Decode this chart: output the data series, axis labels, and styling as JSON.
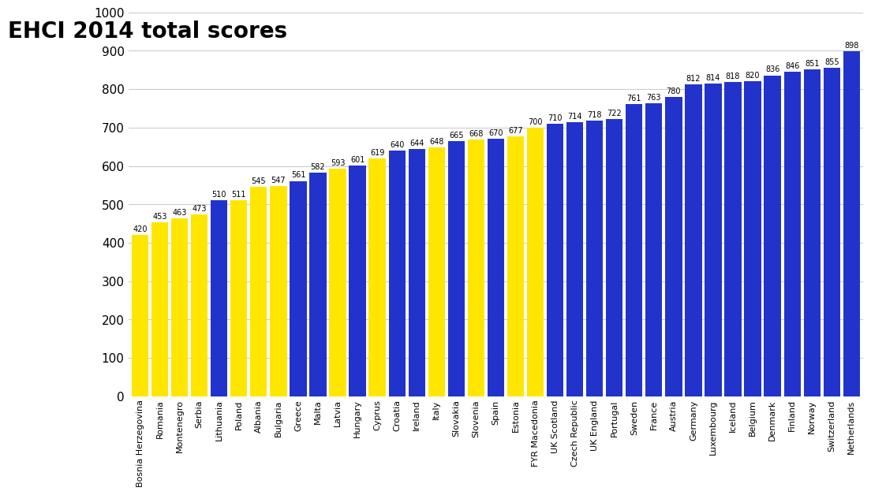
{
  "title": "EHCI 2014 total scores",
  "categories": [
    "Bosnia Herzegovina",
    "Romania",
    "Montenegro",
    "Serbia",
    "Lithuania",
    "Poland",
    "Albania",
    "Bulgaria",
    "Greece",
    "Malta",
    "Latvia",
    "Hungary",
    "Cyprus",
    "Croatia",
    "Ireland",
    "Italy",
    "Slovakia",
    "Slovenia",
    "Spain",
    "Estonia",
    "FYR Macedonia",
    "UK Scotland",
    "Czech Republic",
    "UK England",
    "Portugal",
    "Sweden",
    "France",
    "Austria",
    "Germany",
    "Luxembourg",
    "Iceland",
    "Belgium",
    "Denmark",
    "Finland",
    "Norway",
    "Switzerland",
    "Netherlands"
  ],
  "values": [
    420,
    453,
    463,
    473,
    510,
    511,
    545,
    547,
    561,
    582,
    593,
    601,
    619,
    640,
    644,
    648,
    665,
    668,
    670,
    677,
    700,
    710,
    714,
    718,
    722,
    761,
    763,
    780,
    812,
    814,
    818,
    820,
    836,
    846,
    851,
    855,
    898
  ],
  "colors": [
    "yellow",
    "yellow",
    "yellow",
    "yellow",
    "blue",
    "yellow",
    "yellow",
    "yellow",
    "blue",
    "blue",
    "yellow",
    "blue",
    "yellow",
    "blue",
    "blue",
    "yellow",
    "blue",
    "yellow",
    "blue",
    "yellow",
    "yellow",
    "blue",
    "blue",
    "blue",
    "blue",
    "blue",
    "blue",
    "blue",
    "blue",
    "blue",
    "blue",
    "blue",
    "blue",
    "blue",
    "blue",
    "blue",
    "blue"
  ],
  "ylim": [
    0,
    1000
  ],
  "yticks": [
    0,
    100,
    200,
    300,
    400,
    500,
    600,
    700,
    800,
    900,
    1000
  ],
  "bar_color_yellow": "#FFE600",
  "bar_color_blue": "#2233CC",
  "title_fontsize": 20,
  "label_fontsize": 8,
  "value_fontsize": 7,
  "background_color": "#FFFFFF",
  "grid_color": "#CCCCCC"
}
